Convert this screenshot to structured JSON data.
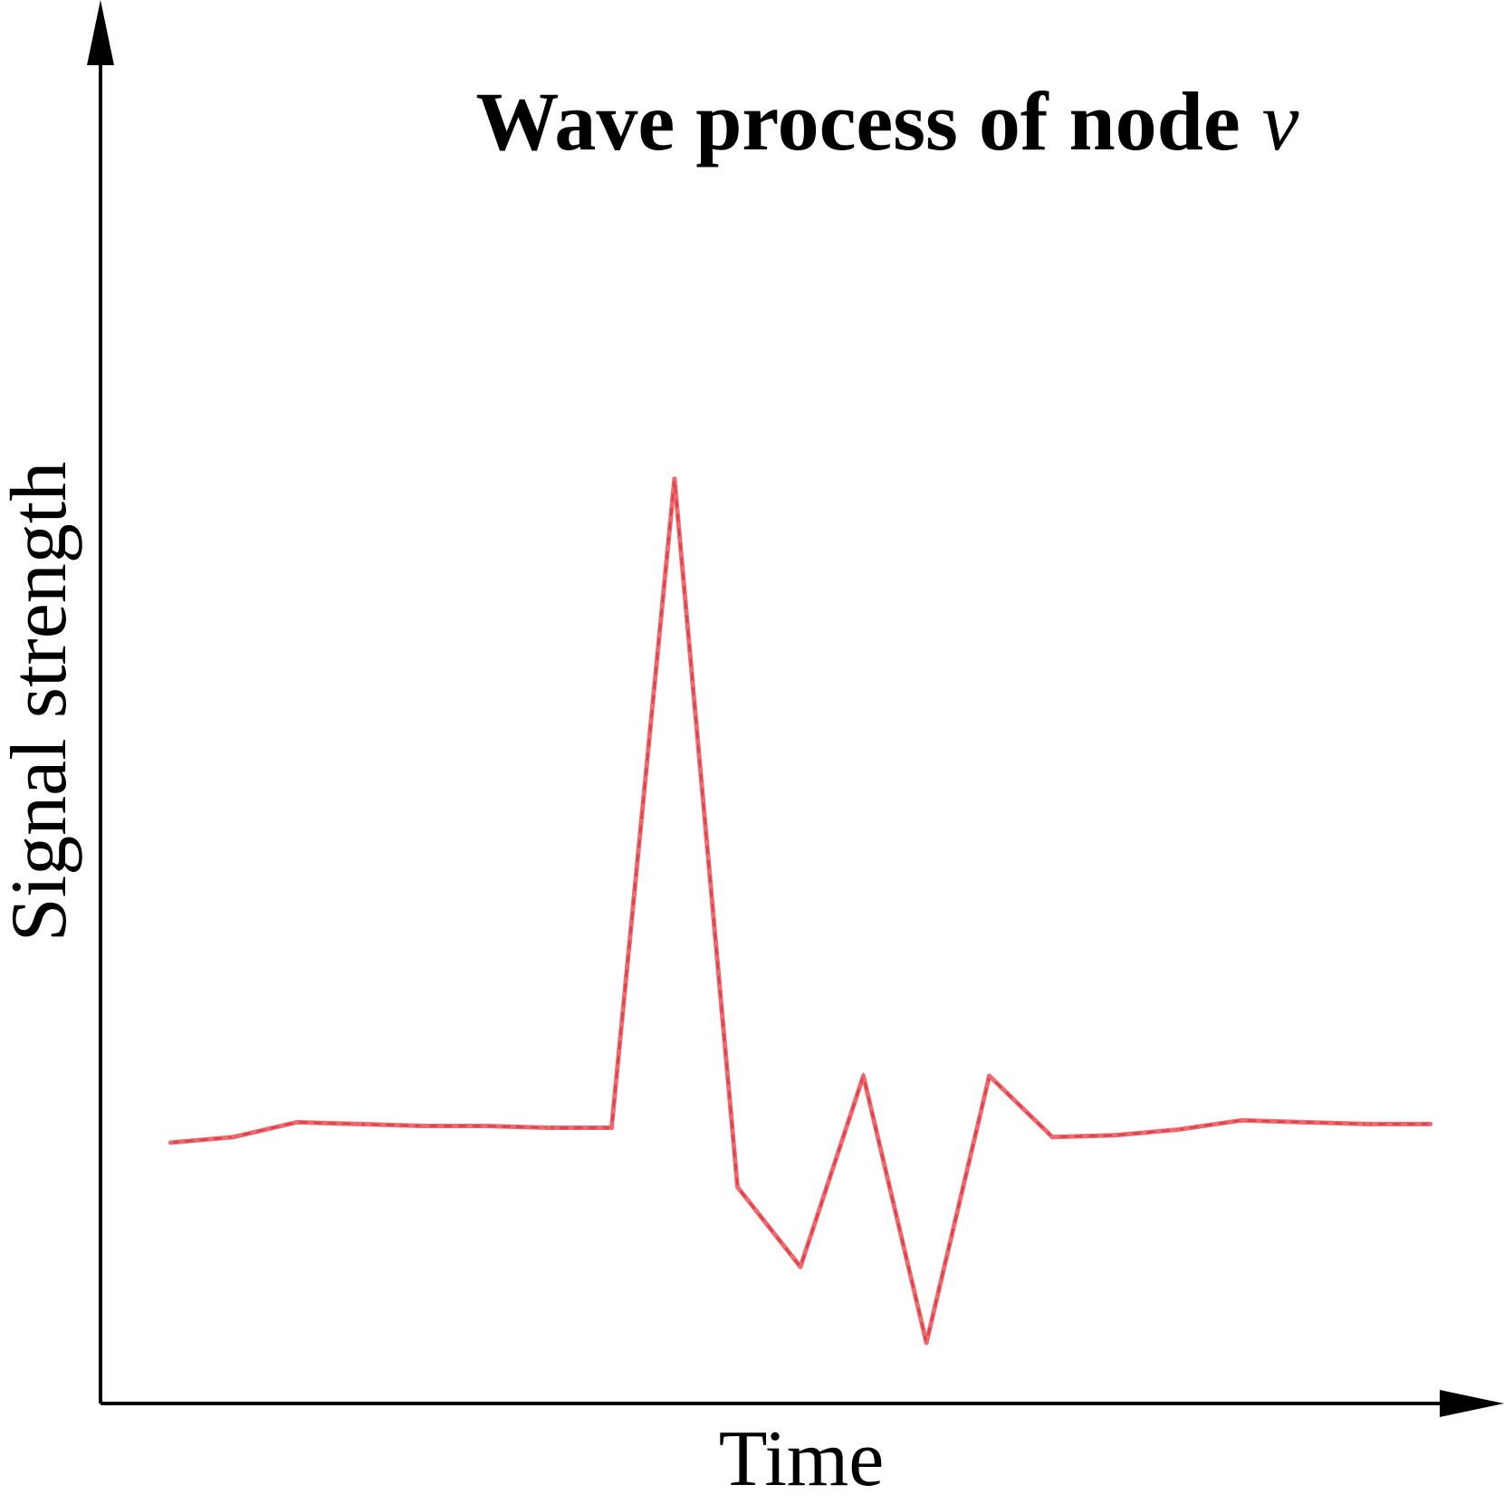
{
  "chart_data": {
    "type": "line",
    "title": "Wave process of node",
    "title_variable": "v",
    "xlabel": "Time",
    "ylabel": "Signal strength",
    "grid": false,
    "legend": "none",
    "ticks": "none",
    "ylim": [
      -20,
      60
    ],
    "xlim": [
      0,
      22
    ],
    "series": [
      {
        "color": "#ee6a6f",
        "style": "dashed",
        "points": [
          {
            "x": 1,
            "y": -0.8
          },
          {
            "x": 2,
            "y": -0.5
          },
          {
            "x": 3,
            "y": 0.3
          },
          {
            "x": 4,
            "y": 0.2
          },
          {
            "x": 5,
            "y": 0.1
          },
          {
            "x": 6,
            "y": 0.1
          },
          {
            "x": 7,
            "y": 0.0
          },
          {
            "x": 8,
            "y": 0.0
          },
          {
            "x": 9,
            "y": 35.0
          },
          {
            "x": 10,
            "y": -3.2
          },
          {
            "x": 11,
            "y": -7.5
          },
          {
            "x": 12,
            "y": 2.8
          },
          {
            "x": 13,
            "y": -11.6
          },
          {
            "x": 14,
            "y": 2.8
          },
          {
            "x": 15,
            "y": -0.5
          },
          {
            "x": 16,
            "y": -0.4
          },
          {
            "x": 17,
            "y": -0.1
          },
          {
            "x": 18,
            "y": 0.4
          },
          {
            "x": 19,
            "y": 0.3
          },
          {
            "x": 20,
            "y": 0.2
          },
          {
            "x": 21,
            "y": 0.2
          }
        ]
      }
    ]
  }
}
